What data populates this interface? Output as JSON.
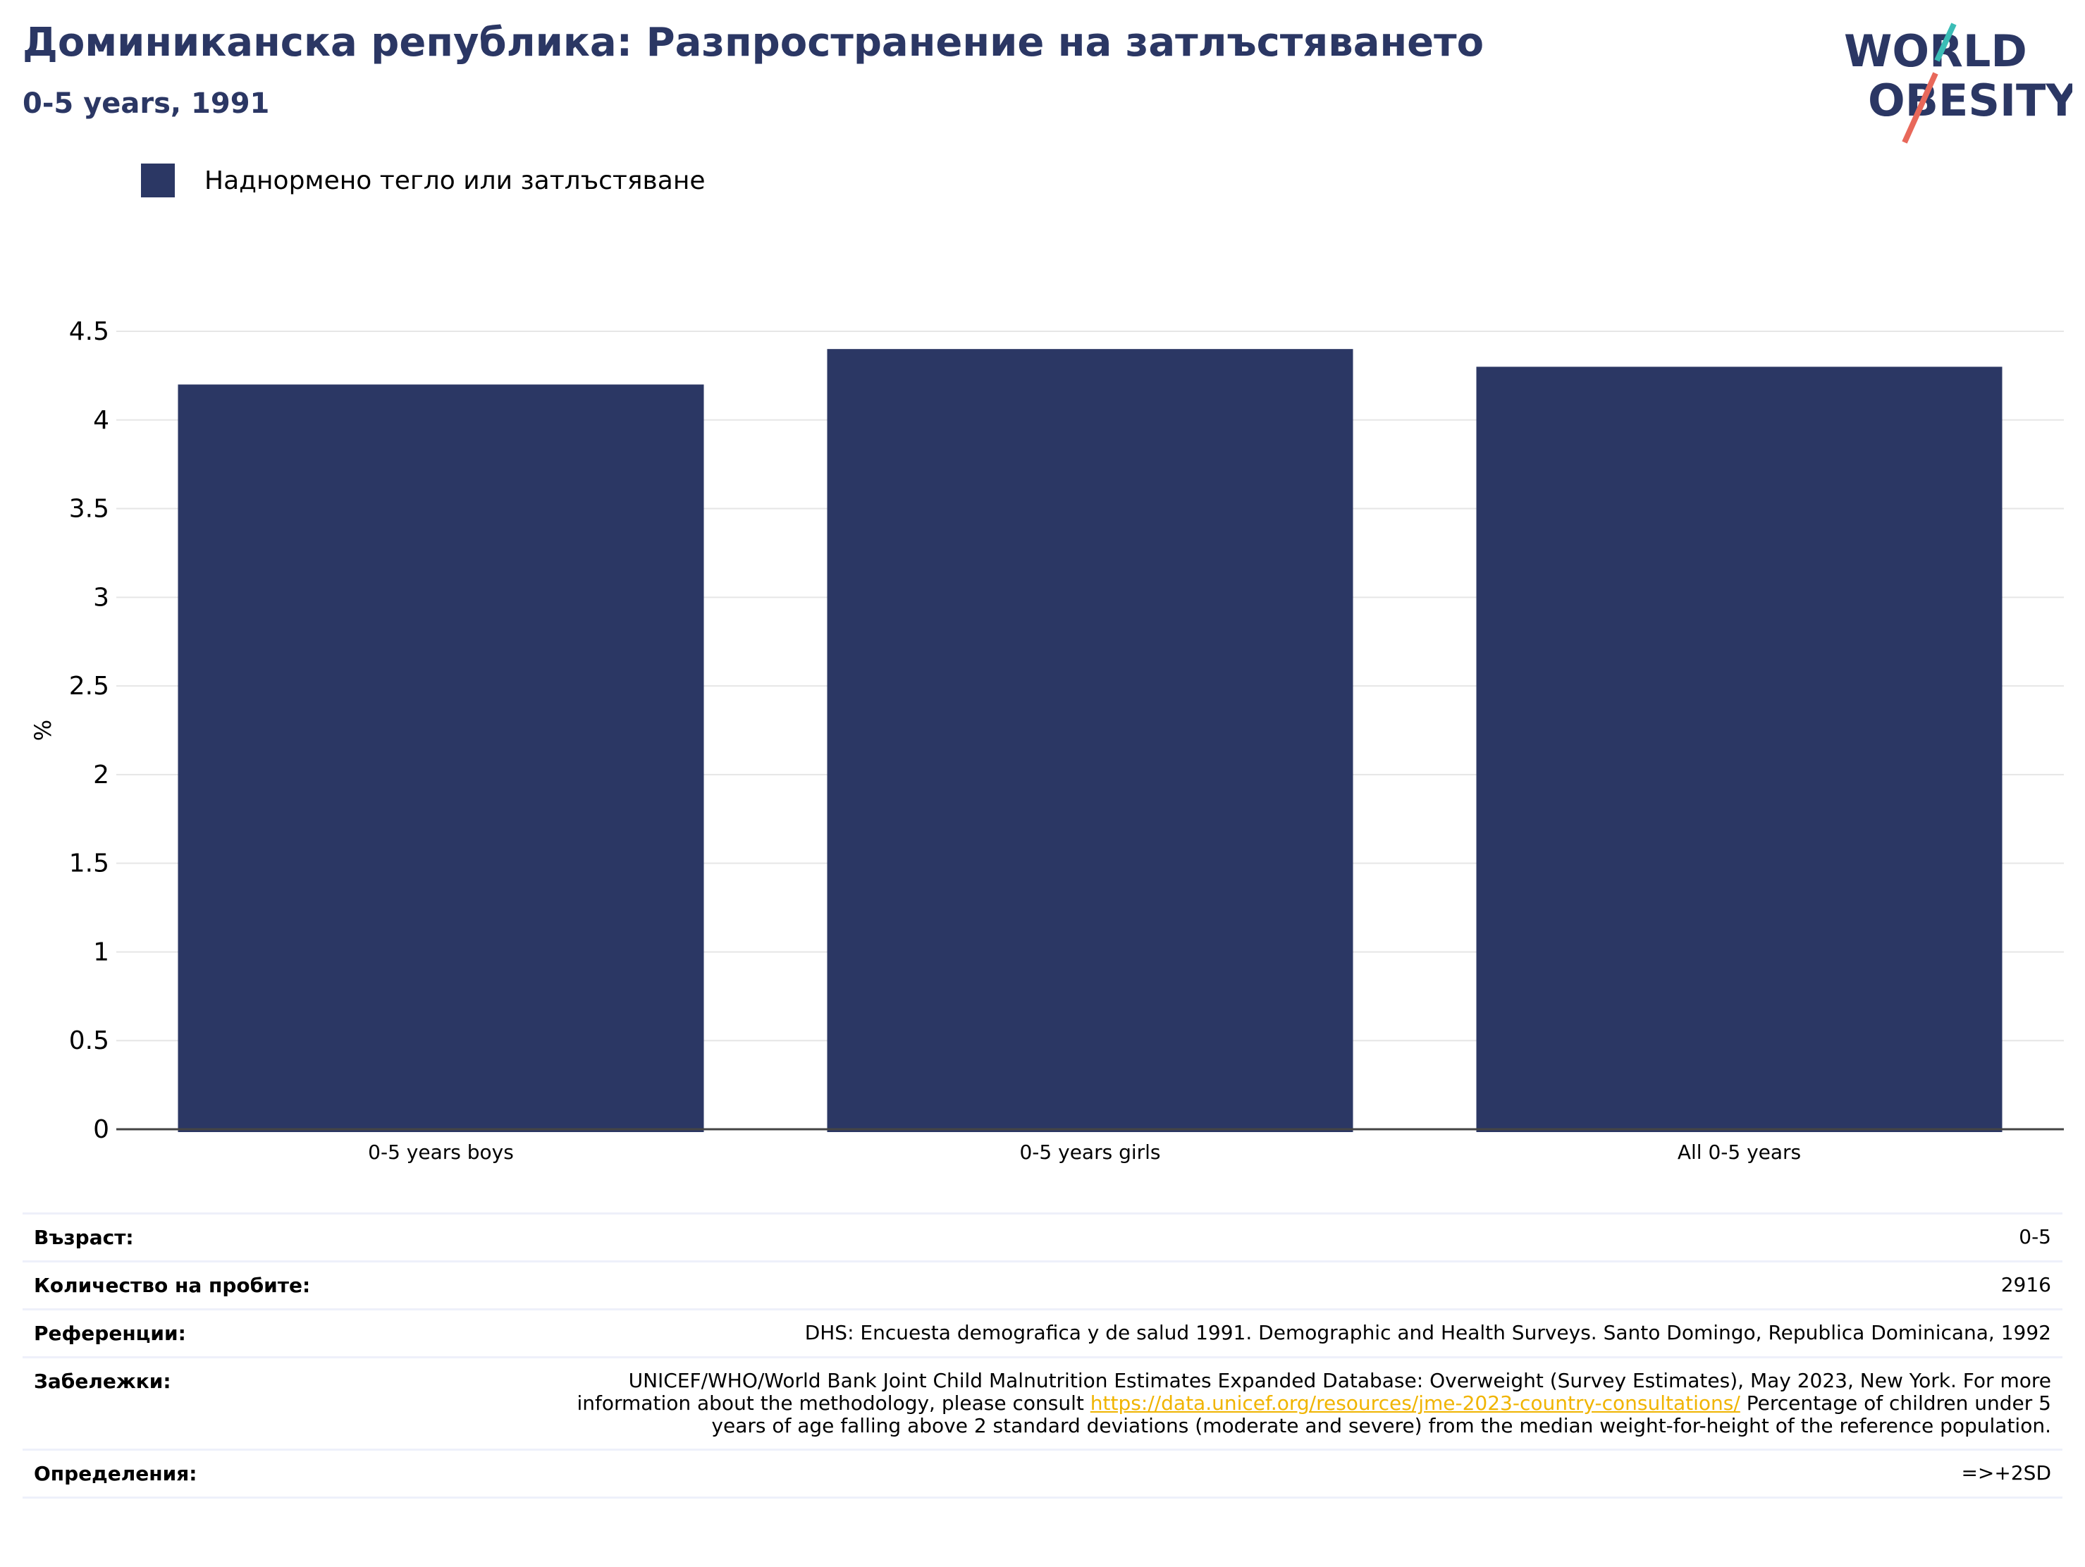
{
  "header": {
    "title": "Доминиканска република: Разпространение на затлъстяването",
    "subtitle": "0-5 years, 1991"
  },
  "logo": {
    "line1": "WORLD",
    "line2": "OBESITY"
  },
  "colors": {
    "bar": "#2b3764",
    "title": "#2b3764",
    "link": "#f0b400",
    "grid": "#e6e6e6"
  },
  "chart_data": {
    "type": "bar",
    "categories": [
      "0-5 years boys",
      "0-5 years girls",
      "All 0-5 years"
    ],
    "series": [
      {
        "name": "Наднормено тегло или затлъстяване",
        "values": [
          4.2,
          4.4,
          4.3
        ]
      }
    ],
    "ylabel": "%",
    "ylim": [
      0,
      4.5
    ],
    "yticks": [
      "0",
      "0.5",
      "1",
      "1.5",
      "2",
      "2.5",
      "3",
      "3.5",
      "4",
      "4.5"
    ],
    "grid": true,
    "legend": "top-left"
  },
  "meta": {
    "age_label": "Възраст:",
    "age_value": "0-5",
    "sample_label": "Количество на пробите:",
    "sample_value": "2916",
    "refs_label": "Референции:",
    "refs_value": "DHS: Encuesta demografica y de salud 1991. Demographic and Health Surveys. Santo Domingo, Republica Dominicana, 1992",
    "notes_label": "Забележки:",
    "notes_before": "UNICEF/WHO/World Bank Joint Child Malnutrition Estimates Expanded Database: Overweight (Survey Estimates), May 2023, New York. For more information about the methodology, please consult ",
    "notes_link": "https://data.unicef.org/resources/jme-2023-country-consultations/",
    "notes_after": " Percentage of children under 5 years of age falling above 2 standard deviations (moderate and severe) from the median weight-for-height of the reference population.",
    "defs_label": "Определения:",
    "defs_value": "=>+2SD"
  }
}
